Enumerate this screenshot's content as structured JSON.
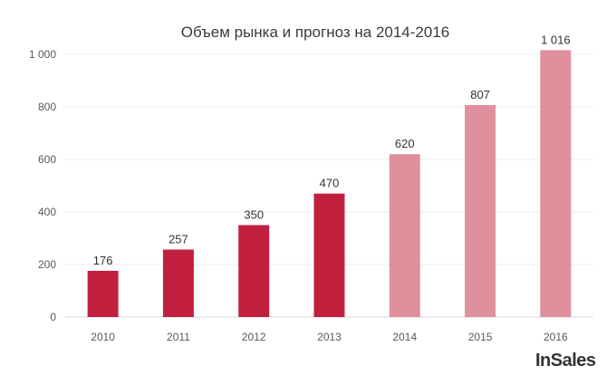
{
  "chart_data": {
    "type": "bar",
    "title": "Объем рынка и прогноз на 2014-2016",
    "categories": [
      "2010",
      "2011",
      "2012",
      "2013",
      "2014",
      "2015",
      "2016"
    ],
    "values": [
      176,
      257,
      350,
      470,
      620,
      807,
      1016
    ],
    "data_labels": [
      "176",
      "257",
      "350",
      "470",
      "620",
      "807",
      "1 016"
    ],
    "forecast_from_index": 4,
    "ylim": [
      0,
      1000
    ],
    "yticks": [
      0,
      200,
      400,
      600,
      800,
      1000
    ],
    "ytick_labels": [
      "0",
      "200",
      "400",
      "600",
      "800",
      "1 000"
    ],
    "grid": true,
    "colors": {
      "actual": "#c0203e",
      "forecast": "#e0909d",
      "grid": "#ececec",
      "axis": "#d9d9d9"
    },
    "xlabel": "",
    "ylabel": ""
  },
  "logo_text": "InSales"
}
